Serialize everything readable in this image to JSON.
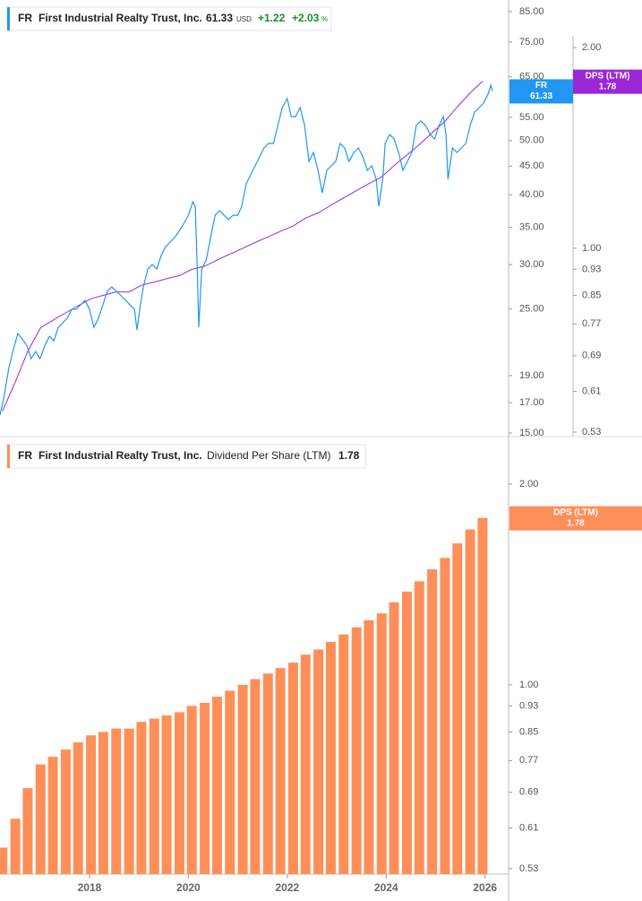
{
  "chart_data": [
    {
      "type": "line",
      "symbol": "FR",
      "name": "First Industrial Realty Trust, Inc.",
      "currency": "USD",
      "change": "+1.22",
      "change_pct": "+2.03",
      "change_unit": "%",
      "xlim": [
        2016.19,
        2026.44
      ],
      "ylim": [
        15,
        85
      ],
      "ylog": true,
      "y2lim": [
        0.53,
        2
      ],
      "y2log": true,
      "yticks": [
        {
          "value": 85,
          "label": "85.00"
        },
        {
          "value": 75,
          "label": "75.00"
        },
        {
          "value": 65,
          "label": "65.00"
        },
        {
          "value": 55,
          "label": "55.00"
        },
        {
          "value": 50,
          "label": "50.00"
        },
        {
          "value": 45,
          "label": "45.00"
        },
        {
          "value": 40,
          "label": "40.00"
        },
        {
          "value": 35,
          "label": "35.00"
        },
        {
          "value": 30,
          "label": "30.00"
        },
        {
          "value": 25,
          "label": "25.00"
        },
        {
          "value": 19,
          "label": "19.00"
        },
        {
          "value": 17,
          "label": "17.00"
        },
        {
          "value": 15,
          "label": "15.00"
        }
      ],
      "y2ticks": [
        {
          "value": 2,
          "label": "2.00"
        },
        {
          "value": 1,
          "label": "1.00"
        },
        0.93,
        0.85,
        0.77,
        0.69,
        0.61,
        0.53
      ],
      "series": [
        {
          "name": "FR",
          "color": "#2196f3",
          "x": [
            2016.19,
            2016.28,
            2016.37,
            2016.46,
            2016.55,
            2016.64,
            2016.73,
            2016.82,
            2016.91,
            2017.0,
            2017.1,
            2017.19,
            2017.28,
            2017.37,
            2017.46,
            2017.55,
            2017.64,
            2017.73,
            2017.82,
            2017.91,
            2018.0,
            2018.09,
            2018.18,
            2018.27,
            2018.36,
            2018.45,
            2018.55,
            2018.64,
            2018.73,
            2018.82,
            2018.91,
            2018.96,
            2019.03,
            2019.09,
            2019.18,
            2019.27,
            2019.36,
            2019.45,
            2019.54,
            2019.63,
            2019.72,
            2019.81,
            2019.9,
            2020.0,
            2020.09,
            2020.14,
            2020.18,
            2020.21,
            2020.27,
            2020.36,
            2020.45,
            2020.54,
            2020.63,
            2020.72,
            2020.81,
            2020.9,
            2021.0,
            2021.08,
            2021.17,
            2021.26,
            2021.35,
            2021.44,
            2021.53,
            2021.62,
            2021.72,
            2021.81,
            2021.9,
            2022.0,
            2022.08,
            2022.17,
            2022.26,
            2022.35,
            2022.44,
            2022.53,
            2022.62,
            2022.71,
            2022.8,
            2022.89,
            2022.98,
            2023.07,
            2023.16,
            2023.25,
            2023.35,
            2023.44,
            2023.53,
            2023.62,
            2023.71,
            2023.8,
            2023.85,
            2023.93,
            2023.98,
            2024.07,
            2024.16,
            2024.25,
            2024.34,
            2024.43,
            2024.52,
            2024.61,
            2024.7,
            2024.8,
            2024.89,
            2024.98,
            2025.07,
            2025.16,
            2025.21,
            2025.25,
            2025.34,
            2025.43,
            2025.52,
            2025.61,
            2025.7,
            2025.79,
            2025.88,
            2025.97,
            2026.06,
            2026.12,
            2026.15
          ],
          "values": [
            16.15,
            17.58,
            19.63,
            21.14,
            22.59,
            22.09,
            21.53,
            20.37,
            20.98,
            20.37,
            21.53,
            22.34,
            21.93,
            23.18,
            23.61,
            24.06,
            24.96,
            24.96,
            25.42,
            25.89,
            24.96,
            23.18,
            24.06,
            25.42,
            26.87,
            27.37,
            26.87,
            26.38,
            25.89,
            25.42,
            24.96,
            22.92,
            25.42,
            27.37,
            29.47,
            30.01,
            29.47,
            31.14,
            32.31,
            32.91,
            33.53,
            34.41,
            35.44,
            36.77,
            38.86,
            38.16,
            29.47,
            23.18,
            29.47,
            30.57,
            33.53,
            36.77,
            37.46,
            36.77,
            36.1,
            36.77,
            36.77,
            38.16,
            41.85,
            43.42,
            45.05,
            46.74,
            48.5,
            49.4,
            49.4,
            53.19,
            57.26,
            59.42,
            55.19,
            55.19,
            57.26,
            53.19,
            45.88,
            47.62,
            44.23,
            40.32,
            44.23,
            45.05,
            45.88,
            49.4,
            48.5,
            45.88,
            47.62,
            48.5,
            46.74,
            44.23,
            45.05,
            42.62,
            38.16,
            42.62,
            49.4,
            51.26,
            50.32,
            47.62,
            44.23,
            45.88,
            47.62,
            53.19,
            54.18,
            53.19,
            51.26,
            50.32,
            53.19,
            55.19,
            51.26,
            42.62,
            48.5,
            47.62,
            48.5,
            49.4,
            53.19,
            56.22,
            57.26,
            58.33,
            60.53,
            62.8,
            61.33
          ]
        },
        {
          "name": "DPS (LTM)",
          "color": "#9b27d6",
          "axis": "y2",
          "x": [
            2016.24,
            2016.5,
            2016.75,
            2017.01,
            2017.26,
            2017.52,
            2017.77,
            2018.03,
            2018.28,
            2018.54,
            2018.8,
            2019.05,
            2019.31,
            2019.56,
            2019.82,
            2020.07,
            2020.33,
            2020.58,
            2020.84,
            2021.1,
            2021.35,
            2021.61,
            2021.86,
            2022.12,
            2022.37,
            2022.63,
            2022.88,
            2023.14,
            2023.4,
            2023.65,
            2023.91,
            2024.16,
            2024.42,
            2024.67,
            2024.93,
            2025.19,
            2025.44,
            2025.7,
            2025.95
          ],
          "values": [
            0.57,
            0.63,
            0.7,
            0.76,
            0.78,
            0.8,
            0.82,
            0.84,
            0.85,
            0.86,
            0.86,
            0.88,
            0.89,
            0.9,
            0.91,
            0.93,
            0.94,
            0.96,
            0.98,
            1.0,
            1.02,
            1.04,
            1.06,
            1.08,
            1.11,
            1.13,
            1.16,
            1.19,
            1.22,
            1.25,
            1.28,
            1.33,
            1.38,
            1.43,
            1.49,
            1.55,
            1.63,
            1.71,
            1.78
          ]
        }
      ]
    },
    {
      "type": "bar",
      "symbol": "FR",
      "name": "First Industrial Realty Trust, Inc.",
      "title": "Dividend Per Share (LTM)",
      "xlim": [
        2016.19,
        2026.44
      ],
      "xticks": [
        2018,
        2020,
        2022,
        2024,
        2026
      ],
      "ylim": [
        0.53,
        2
      ],
      "ylog": true,
      "yticks": [
        {
          "value": 2,
          "label": "2.00"
        },
        {
          "value": 1,
          "label": "1.00"
        },
        0.93,
        0.85,
        0.77,
        0.69,
        0.61,
        0.53
      ],
      "x": [
        2016.24,
        2016.5,
        2016.75,
        2017.01,
        2017.26,
        2017.52,
        2017.77,
        2018.03,
        2018.28,
        2018.54,
        2018.8,
        2019.05,
        2019.31,
        2019.56,
        2019.82,
        2020.07,
        2020.33,
        2020.58,
        2020.84,
        2021.1,
        2021.35,
        2021.61,
        2021.86,
        2022.12,
        2022.37,
        2022.63,
        2022.88,
        2023.14,
        2023.4,
        2023.65,
        2023.91,
        2024.16,
        2024.42,
        2024.67,
        2024.93,
        2025.19,
        2025.44,
        2025.7,
        2025.95
      ],
      "series": [
        {
          "name": "DPS (LTM)",
          "color": "#ff8f59",
          "values": [
            0.57,
            0.63,
            0.7,
            0.76,
            0.78,
            0.8,
            0.82,
            0.84,
            0.85,
            0.86,
            0.86,
            0.88,
            0.89,
            0.9,
            0.91,
            0.93,
            0.94,
            0.96,
            0.98,
            1.0,
            1.02,
            1.04,
            1.06,
            1.08,
            1.11,
            1.13,
            1.16,
            1.19,
            1.22,
            1.25,
            1.28,
            1.33,
            1.38,
            1.43,
            1.49,
            1.55,
            1.63,
            1.71,
            1.78
          ]
        }
      ]
    }
  ]
}
